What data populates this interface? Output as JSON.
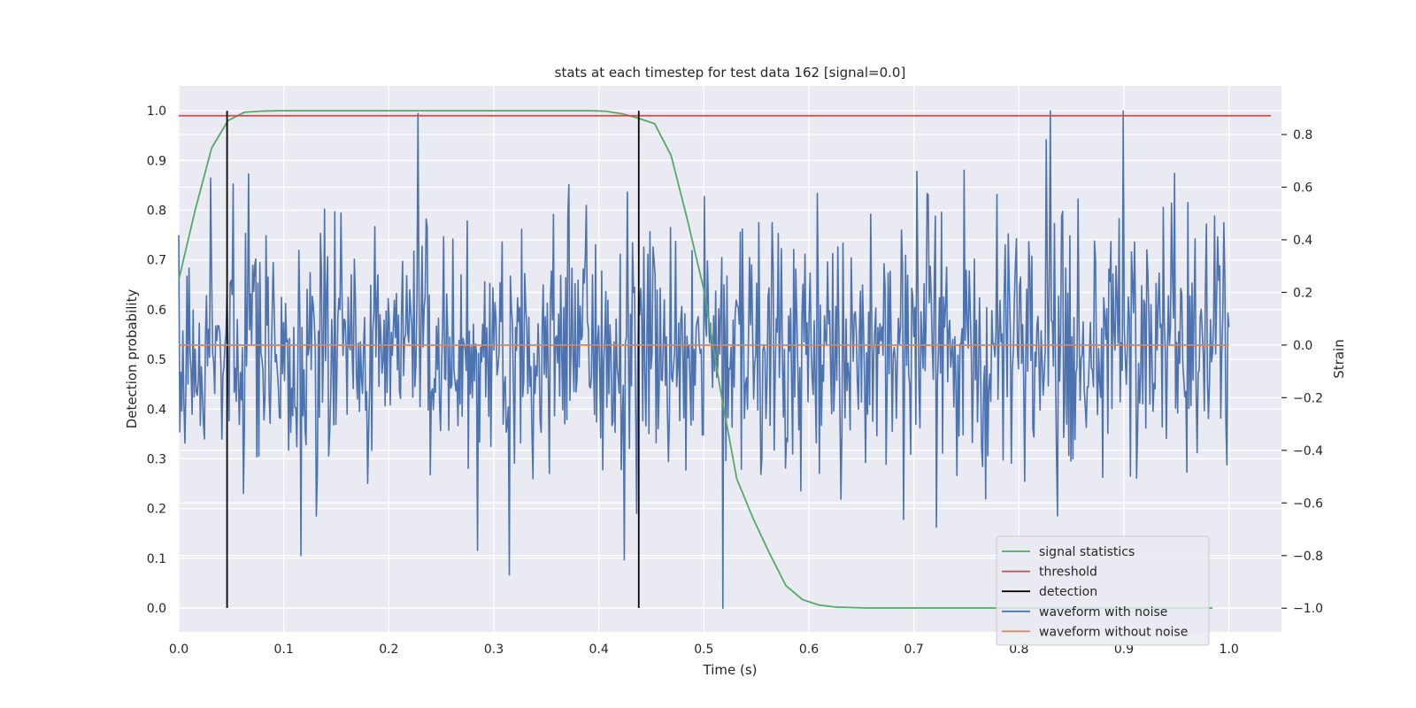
{
  "chart_data": {
    "type": "line",
    "title": "stats at each timestep for test data 162 [signal=0.0]",
    "xlabel": "Time (s)",
    "ylabel_left": "Detection probability",
    "ylabel_right": "Strain",
    "xlim": [
      0.0,
      1.05
    ],
    "ylim_left": [
      -0.048,
      1.05
    ],
    "ylim_right": [
      -1.09,
      0.985
    ],
    "x_ticks": [
      "0.0",
      "0.1",
      "0.2",
      "0.3",
      "0.4",
      "0.5",
      "0.6",
      "0.7",
      "0.8",
      "0.9",
      "1.0"
    ],
    "x_tick_values": [
      0.0,
      0.1,
      0.2,
      0.3,
      0.4,
      0.5,
      0.6,
      0.7,
      0.8,
      0.9,
      1.0
    ],
    "y_left_ticks": [
      "0.0",
      "0.1",
      "0.2",
      "0.3",
      "0.4",
      "0.5",
      "0.6",
      "0.7",
      "0.8",
      "0.9",
      "1.0"
    ],
    "y_left_tick_values": [
      0.0,
      0.1,
      0.2,
      0.3,
      0.4,
      0.5,
      0.6,
      0.7,
      0.8,
      0.9,
      1.0
    ],
    "y_right_ticks": [
      "−1.0",
      "−0.8",
      "−0.6",
      "−0.4",
      "−0.2",
      "0.0",
      "0.2",
      "0.4",
      "0.6",
      "0.8"
    ],
    "y_right_tick_values": [
      -1.0,
      -0.8,
      -0.6,
      -0.4,
      -0.2,
      0.0,
      0.2,
      0.4,
      0.6,
      0.8
    ],
    "grid": true,
    "legend_position": "bottom-right",
    "colors": {
      "plot_bg": "#eaeaf2",
      "grid": "#ffffff",
      "signal_statistics": "#55a868",
      "threshold": "#c44e52",
      "detection": "#000000",
      "waveform_with_noise": "#4c72b0",
      "waveform_without_noise": "#dd8452"
    },
    "series": [
      {
        "name": "signal statistics",
        "axis": "left",
        "x": [
          0.0,
          0.0156,
          0.0313,
          0.0469,
          0.0625,
          0.0781,
          0.0938,
          0.1094,
          0.125,
          0.1406,
          0.1563,
          0.1719,
          0.1875,
          0.2031,
          0.2188,
          0.2344,
          0.25,
          0.2656,
          0.2813,
          0.2969,
          0.3125,
          0.3281,
          0.3438,
          0.3594,
          0.375,
          0.3906,
          0.4063,
          0.4219,
          0.4375,
          0.4531,
          0.4688,
          0.4844,
          0.5,
          0.5156,
          0.5313,
          0.5469,
          0.5625,
          0.5781,
          0.5938,
          0.6094,
          0.625,
          0.6406,
          0.6563,
          0.6719,
          0.6875,
          0.7031,
          0.7188,
          0.7344,
          0.75,
          0.7656,
          0.7813,
          0.7969,
          0.8125,
          0.8281,
          0.8438,
          0.8594,
          0.875,
          0.8906,
          0.9063,
          0.9219,
          0.9375,
          0.9531,
          0.9688,
          0.9844
        ],
        "values": [
          0.66,
          0.8,
          0.925,
          0.98,
          0.997,
          0.999,
          1.0,
          1.0,
          1.0,
          1.0,
          1.0,
          1.0,
          1.0,
          1.0,
          1.0,
          1.0,
          1.0,
          1.0,
          1.0,
          1.0,
          1.0,
          1.0,
          1.0,
          1.0,
          1.0,
          1.0,
          0.999,
          0.994,
          0.985,
          0.974,
          0.91,
          0.78,
          0.64,
          0.44,
          0.26,
          0.18,
          0.11,
          0.045,
          0.017,
          0.006,
          0.002,
          0.001,
          0.0,
          0.0,
          0.0,
          0.0,
          0.0,
          0.0,
          0.0,
          0.0,
          0.0,
          0.0,
          0.0,
          0.0,
          0.0,
          0.0,
          0.0,
          0.0,
          0.0,
          0.0,
          0.0,
          0.0,
          0.0,
          0.0
        ]
      },
      {
        "name": "threshold",
        "axis": "left",
        "x": [
          0.0,
          1.04
        ],
        "values": [
          0.99,
          0.99
        ]
      },
      {
        "name": "detection",
        "axis": "left",
        "segments": [
          {
            "x": 0.046,
            "y": [
              0.0,
              1.0
            ]
          },
          {
            "x": 0.438,
            "y": [
              0.0,
              1.0
            ]
          }
        ]
      },
      {
        "name": "waveform with noise",
        "axis": "right",
        "x_start": 0.0,
        "x_end": 1.0,
        "samples": 1024,
        "std": 0.25,
        "min": -1.0,
        "max": 0.89,
        "peaks": [
          {
            "x": 0.228,
            "y": 0.88
          },
          {
            "x": 0.899,
            "y": 0.89
          },
          {
            "x": 0.518,
            "y": -1.0
          },
          {
            "x": 0.116,
            "y": -0.8
          },
          {
            "x": 0.284,
            "y": -0.78
          },
          {
            "x": 0.826,
            "y": 0.78
          },
          {
            "x": 0.703,
            "y": 0.66
          }
        ]
      },
      {
        "name": "waveform without noise",
        "axis": "right",
        "x": [
          0.0,
          1.0
        ],
        "values": [
          0.0,
          0.0
        ]
      }
    ],
    "legend": [
      "signal statistics",
      "threshold",
      "detection",
      "waveform with noise",
      "waveform without noise"
    ]
  }
}
